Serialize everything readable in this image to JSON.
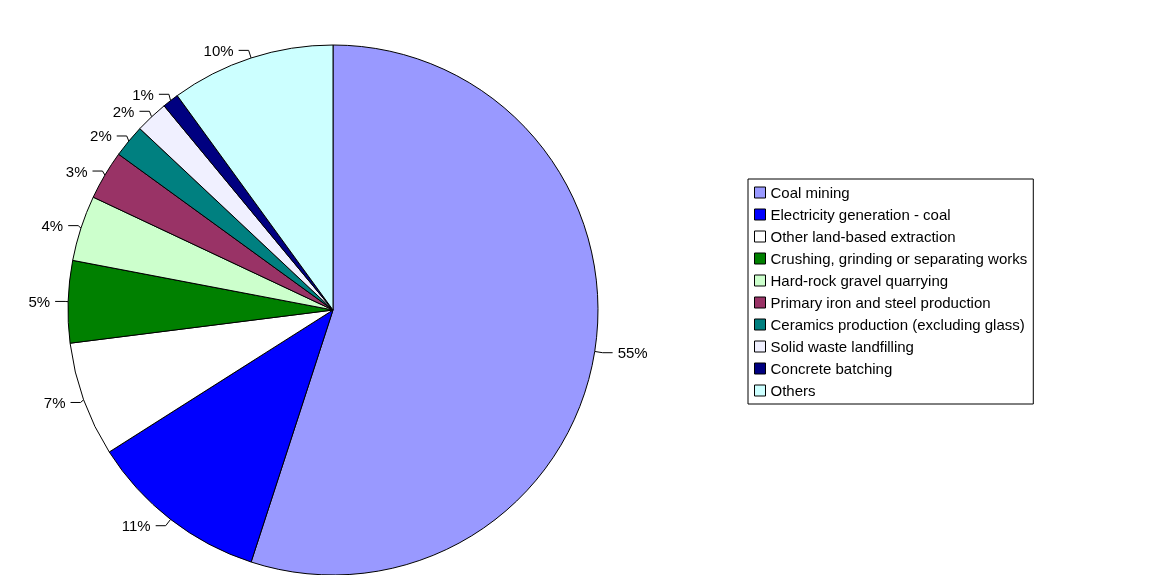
{
  "chart_data": {
    "type": "pie",
    "categories": [
      "Coal mining",
      "Electricity generation - coal",
      "Other land-based extraction",
      "Crushing, grinding or separating works",
      "Hard-rock gravel quarrying",
      "Primary iron and steel production",
      "Ceramics production (excluding glass)",
      "Solid waste landfilling",
      "Concrete batching",
      "Others"
    ],
    "values": [
      55,
      11,
      7,
      5,
      4,
      3,
      2,
      2,
      1,
      10
    ],
    "value_labels": [
      "55%",
      "11%",
      "7%",
      "5%",
      "4%",
      "3%",
      "2%",
      "2%",
      "1%",
      "10%"
    ],
    "colors": [
      "#9999ff",
      "#0000ff",
      "#ffffff",
      "#008000",
      "#ccffcc",
      "#993366",
      "#008080",
      "#f0f0ff",
      "#000080",
      "#ccffff"
    ],
    "legend": "right"
  }
}
